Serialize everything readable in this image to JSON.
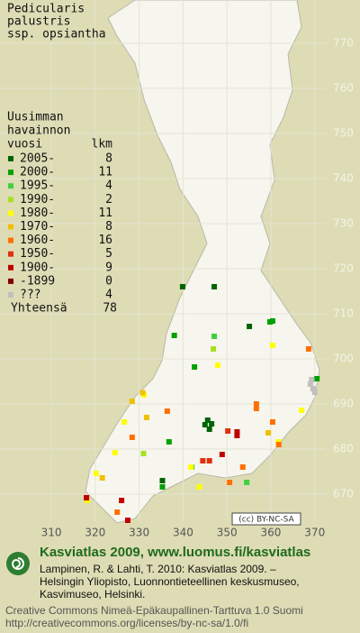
{
  "chart_data": {
    "type": "map",
    "title": [
      "Pedicularis",
      "palustris",
      "ssp. opsiantha"
    ],
    "legend_title": [
      "Uusimman",
      "havainnon",
      "vuosi"
    ],
    "count_header": "lkm",
    "series": [
      {
        "name": "2005-",
        "count": 8,
        "color": "#006400",
        "x": [
          339.9,
          347.1,
          355.1,
          345,
          346,
          345.6,
          335.3,
          346.5
        ],
        "y": [
          716,
          716,
          707.2,
          685.4,
          684.4,
          686.4,
          673,
          685.6
        ]
      },
      {
        "name": "2000-",
        "count": 11,
        "color": "#00a000",
        "x": [
          338,
          359.8,
          342.6,
          370.5,
          336.8,
          335.3,
          360.4
        ],
        "y": [
          705.2,
          708.2,
          698.2,
          695.6,
          681.6,
          671.6,
          708.4
        ]
      },
      {
        "name": "1995-",
        "count": 4,
        "color": "#40d040",
        "x": [
          347.1,
          354.5,
          342
        ],
        "y": [
          705,
          672.6,
          676
        ]
      },
      {
        "name": "1990-",
        "count": 2,
        "color": "#a8e020",
        "x": [
          346.9,
          331
        ],
        "y": [
          702.2,
          679
        ]
      },
      {
        "name": "1980-",
        "count": 11,
        "color": "#ffff00",
        "x": [
          347.9,
          360.4,
          331.1,
          326.6,
          361.7,
          324.5,
          341.8,
          318.2,
          343.7,
          320.2,
          367
        ],
        "y": [
          698.6,
          703,
          692,
          686,
          681.6,
          679.2,
          676,
          668.6,
          671.6,
          674.6,
          688.6
        ]
      },
      {
        "name": "1970-",
        "count": 8,
        "color": "#f0c000",
        "x": [
          328.4,
          331.7,
          359.4,
          321.6,
          330.8
        ],
        "y": [
          690.6,
          687,
          683.6,
          673.6,
          692.5
        ]
      },
      {
        "name": "1960-",
        "count": 16,
        "color": "#ff7000",
        "x": [
          368.6,
          336.4,
          356.7,
          360.4,
          328.4,
          361.8,
          350.6,
          353.6,
          356.7,
          325
        ],
        "y": [
          702.2,
          688.4,
          690,
          686,
          682.6,
          681,
          672.6,
          676,
          689,
          666
        ]
      },
      {
        "name": "1950-",
        "count": 5,
        "color": "#e03010",
        "x": [
          350.2,
          346,
          344.5
        ],
        "y": [
          684,
          677.4,
          677.4
        ]
      },
      {
        "name": "1900-",
        "count": 9,
        "color": "#c00000",
        "x": [
          352.3,
          326,
          352.3,
          318,
          348.9,
          327.4
        ],
        "y": [
          683,
          668.6,
          683.8,
          669.2,
          678.8,
          664.2
        ]
      },
      {
        "name": "-1899",
        "count": 0,
        "color": "#800000",
        "x": [],
        "y": []
      },
      {
        "name": "???",
        "count": 4,
        "color": "#c0c0c0",
        "x": [
          369,
          369.6,
          370,
          369.3
        ],
        "y": [
          694.4,
          693.4,
          692.6,
          695.4
        ]
      }
    ],
    "total_label": "Yhteensä",
    "total": 78,
    "xlim": [
      298.3,
      380.3
    ],
    "ylim": [
      661.6,
      779.6
    ],
    "xticks": [
      310,
      320,
      330,
      340,
      350,
      360,
      370
    ],
    "yticks": [
      670,
      680,
      690,
      700,
      710,
      720,
      730,
      740,
      750,
      760,
      770
    ],
    "badge": "(cc) BY-NC-SA"
  },
  "footer": {
    "heading": "Kasviatlas 2009, www.luomus.fi/kasviatlas",
    "citation": [
      "Lampinen, R. & Lahti, T. 2010: Kasviatlas 2009. –",
      "Helsingin Yliopisto, Luonnontieteellinen keskusmuseo,",
      "Kasvimuseo, Helsinki."
    ],
    "license": [
      "Creative Commons Nimeä-Epäkaupallinen-Tarttuva 1.0 Suomi",
      "http://creativecommons.org/licenses/by-nc-sa/1.0/fi"
    ]
  }
}
